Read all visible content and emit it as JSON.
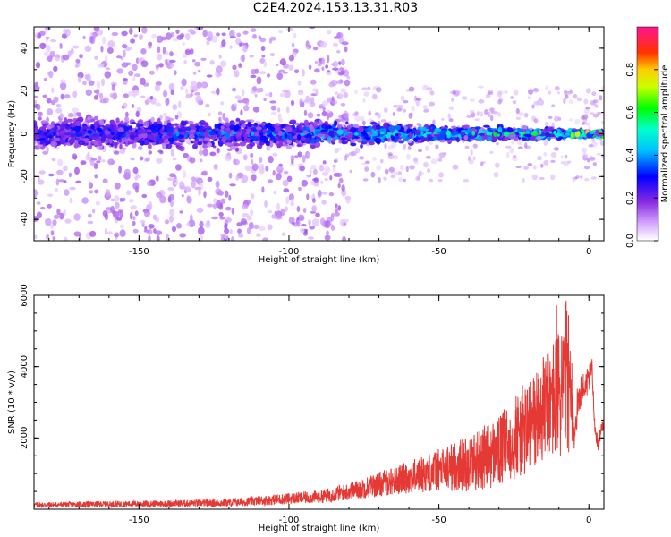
{
  "title": "C2E4.2024.153.13.31.R03",
  "chart_data": [
    {
      "type": "heatmap",
      "name": "spectrogram",
      "xlabel": "Height of straight line (km)",
      "ylabel": "Frequency (Hz)",
      "xlim": [
        -185,
        5
      ],
      "ylim": [
        -50,
        50
      ],
      "xticks": [
        -150,
        -100,
        -50,
        0
      ],
      "yticks": [
        -40,
        -20,
        0,
        20,
        40
      ],
      "colorbar": {
        "label": "Normalized spectral amplitude",
        "range": [
          0,
          1
        ],
        "ticks": [
          "0.0",
          "0.2",
          "0.4",
          "0.6",
          "0.8"
        ],
        "ticks_values": [
          0.0,
          0.2,
          0.4,
          0.6,
          0.8
        ],
        "colormap": [
          "#ffffff",
          "#8a2be2",
          "#0000ff",
          "#00ffff",
          "#00ff00",
          "#ffff00",
          "#ff0000",
          "#ff1493"
        ]
      },
      "band": {
        "center_hz": 0,
        "halfwidth_hz_at_x": [
          [
            -185,
            10
          ],
          [
            -85,
            7
          ],
          [
            -60,
            5
          ],
          [
            -30,
            4
          ],
          [
            -10,
            3
          ],
          [
            0,
            2
          ]
        ],
        "ridge_peak_amplitude_at_x": [
          [
            -185,
            0.3
          ],
          [
            -100,
            0.4
          ],
          [
            -80,
            0.5
          ],
          [
            -40,
            0.55
          ],
          [
            -10,
            0.65
          ],
          [
            0,
            0.95
          ]
        ],
        "scatter_spread_hz_below_x": -85,
        "scatter_spread_hz": 50
      }
    },
    {
      "type": "line",
      "name": "snr",
      "xlabel": "Height of straight line (km)",
      "ylabel": "SNR (10 * v/v)",
      "xlim": [
        -185,
        5
      ],
      "ylim": [
        0,
        6000
      ],
      "xticks": [
        -150,
        -100,
        -50,
        0
      ],
      "yticks": [
        2000,
        4000,
        6000
      ],
      "color": "#e53935",
      "series": [
        {
          "x": [
            -185,
            -150,
            -120,
            -100,
            -90,
            -80,
            -70,
            -60,
            -50,
            -40,
            -30,
            -25,
            -20,
            -15,
            -10,
            -7,
            -5,
            -3,
            -1,
            0,
            1,
            2,
            3,
            4,
            5
          ],
          "y": [
            120,
            150,
            180,
            300,
            350,
            500,
            700,
            900,
            1100,
            1300,
            1600,
            2000,
            2300,
            2800,
            3200,
            3800,
            2000,
            3300,
            3500,
            3600,
            4000,
            2300,
            1800,
            2200,
            2500
          ],
          "amp": [
            80,
            90,
            110,
            160,
            180,
            250,
            350,
            450,
            600,
            800,
            1000,
            1200,
            1400,
            1500,
            1900,
            2300,
            400,
            500,
            400,
            400,
            300,
            200,
            200,
            200,
            200
          ]
        }
      ]
    }
  ]
}
